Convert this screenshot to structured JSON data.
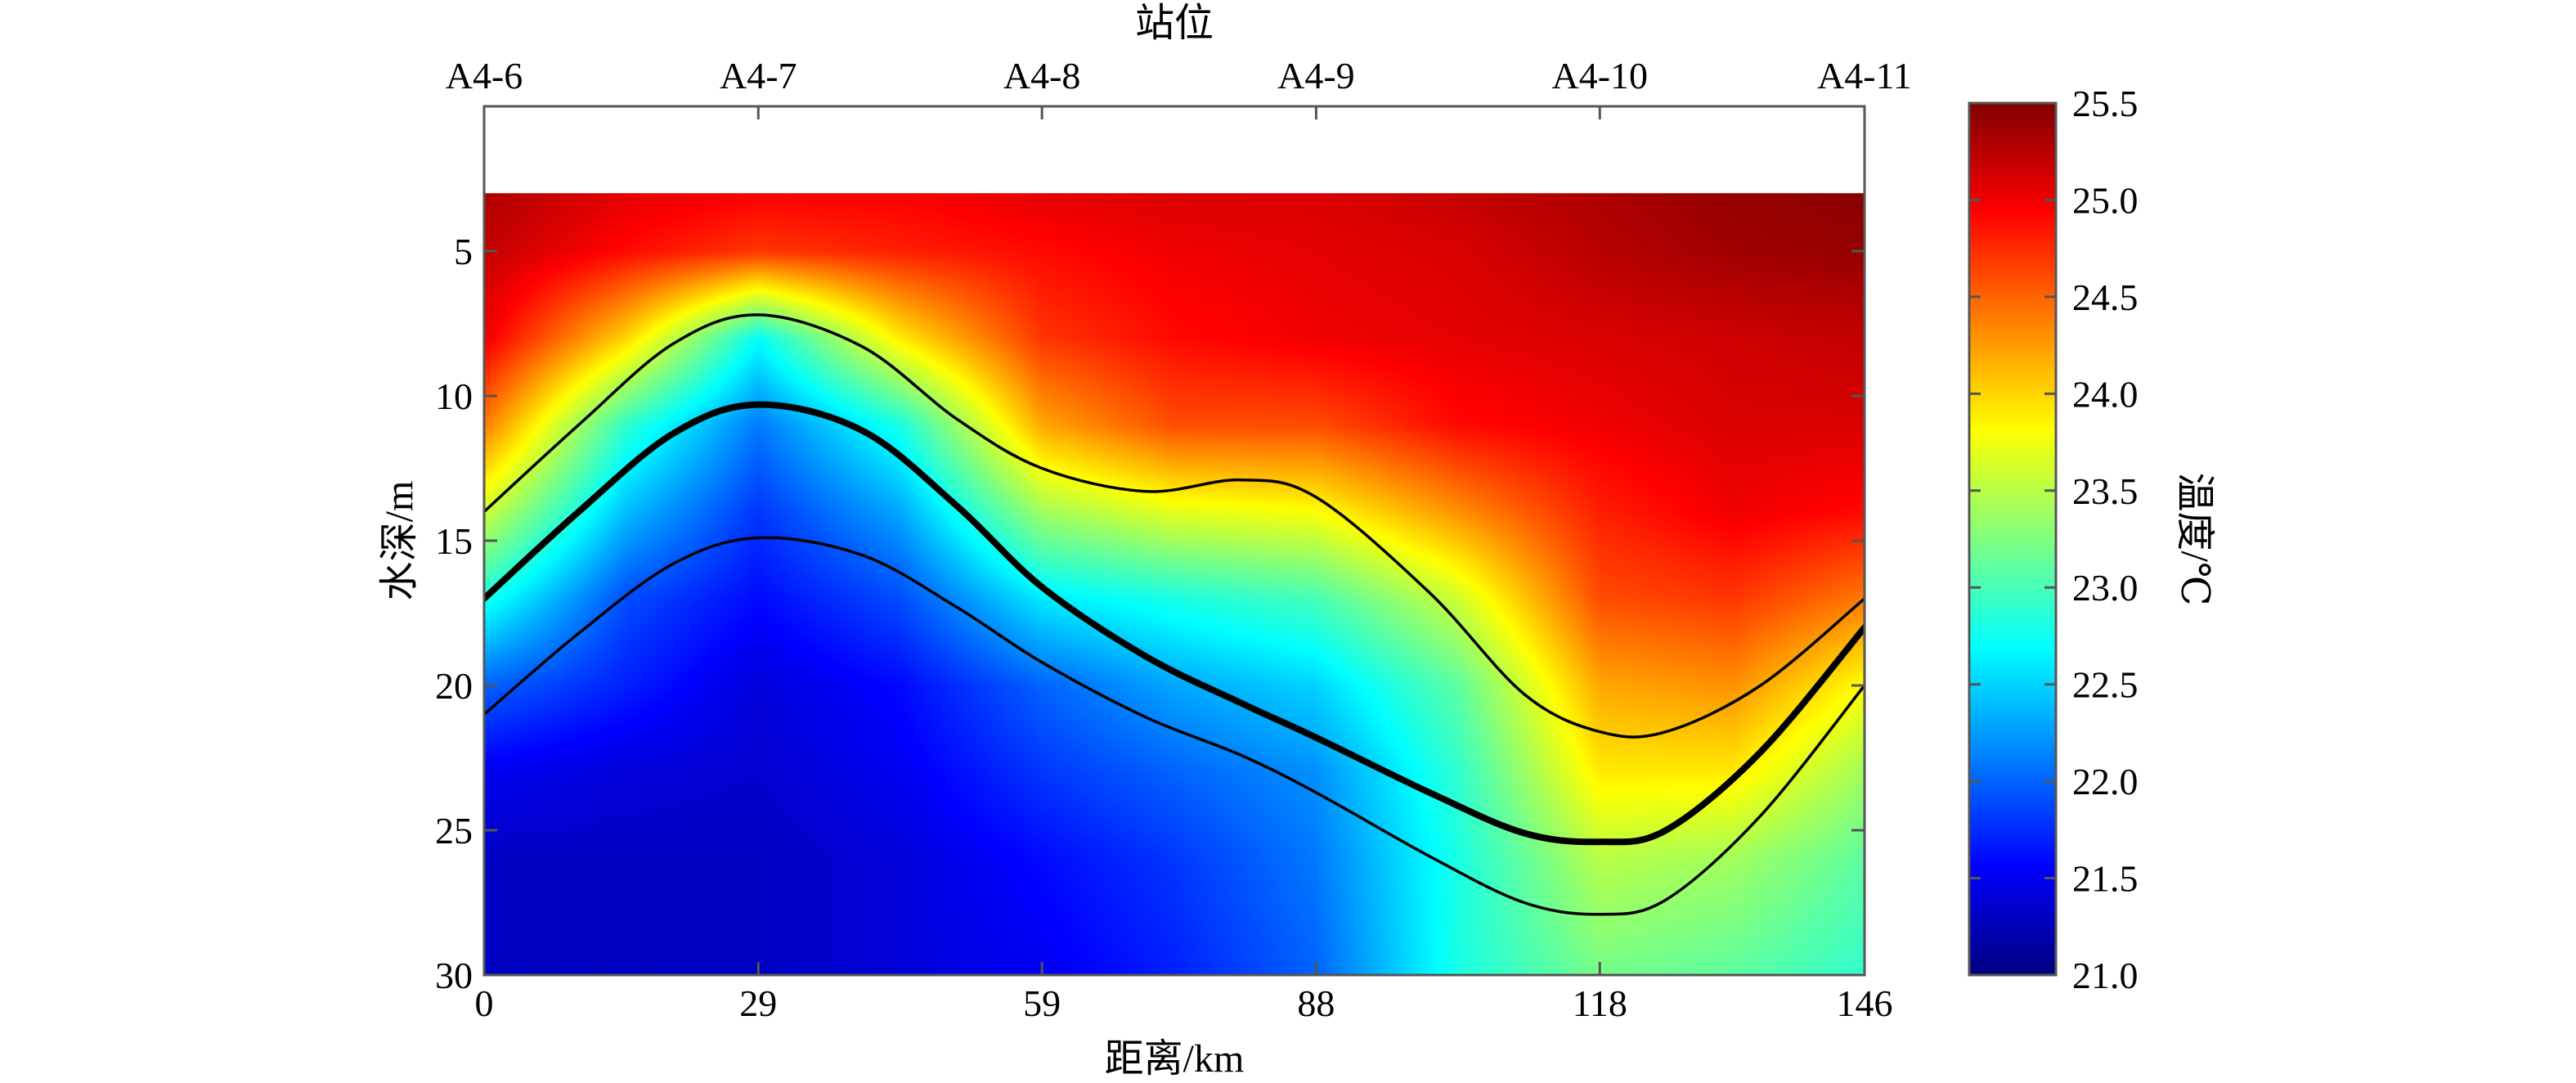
{
  "chart_data": {
    "type": "heatmap",
    "title": "",
    "xlabel": "距离/km",
    "ylabel": "水深/m",
    "top_axis_label": "站位",
    "colorbar_label": "温度/℃",
    "xlim": [
      0,
      146
    ],
    "ylim": [
      30,
      0
    ],
    "data_depth_start": 3,
    "x_ticks": [
      {
        "value": 0,
        "label": "0"
      },
      {
        "value": 29,
        "label": "29"
      },
      {
        "value": 59,
        "label": "59"
      },
      {
        "value": 88,
        "label": "88"
      },
      {
        "value": 118,
        "label": "118"
      },
      {
        "value": 146,
        "label": "146"
      }
    ],
    "y_ticks": [
      {
        "value": 5,
        "label": "5"
      },
      {
        "value": 10,
        "label": "10"
      },
      {
        "value": 15,
        "label": "15"
      },
      {
        "value": 20,
        "label": "20"
      },
      {
        "value": 25,
        "label": "25"
      },
      {
        "value": 30,
        "label": "30"
      }
    ],
    "stations": [
      {
        "name": "A4-6",
        "x": 0
      },
      {
        "name": "A4-7",
        "x": 29
      },
      {
        "name": "A4-8",
        "x": 59
      },
      {
        "name": "A4-9",
        "x": 88
      },
      {
        "name": "A4-10",
        "x": 118
      },
      {
        "name": "A4-11",
        "x": 146
      }
    ],
    "colorbar": {
      "min": 21.0,
      "max": 25.5,
      "ticks": [
        "21.0",
        "21.5",
        "22.0",
        "22.5",
        "23.0",
        "23.5",
        "24.0",
        "24.5",
        "25.0",
        "25.5"
      ],
      "colormap": "jet"
    },
    "series": [
      {
        "style": "thin",
        "x": [
          0,
          10,
          20,
          29,
          40,
          50,
          59,
          70,
          80,
          88,
          100,
          110,
          118,
          125,
          135,
          146
        ],
        "y": [
          14.0,
          11.0,
          8.2,
          7.2,
          8.3,
          10.8,
          12.5,
          13.3,
          12.9,
          13.5,
          16.8,
          20.3,
          21.6,
          21.6,
          20.0,
          17.0
        ]
      },
      {
        "style": "thick",
        "x": [
          0,
          10,
          20,
          29,
          40,
          50,
          59,
          70,
          80,
          88,
          100,
          110,
          118,
          125,
          135,
          146
        ],
        "y": [
          17.0,
          14.0,
          11.3,
          10.3,
          11.2,
          13.8,
          16.6,
          19.0,
          20.6,
          21.8,
          23.7,
          25.1,
          25.4,
          25.0,
          22.3,
          18.0
        ]
      },
      {
        "style": "thin",
        "x": [
          0,
          10,
          20,
          29,
          40,
          50,
          59,
          70,
          80,
          88,
          100,
          110,
          118,
          125,
          135,
          146
        ],
        "y": [
          21.0,
          18.2,
          15.8,
          14.9,
          15.5,
          17.3,
          19.2,
          21.1,
          22.4,
          23.7,
          25.9,
          27.5,
          27.9,
          27.4,
          24.5,
          20.0
        ]
      }
    ],
    "temperature_grid": {
      "x": [
        0,
        15,
        29,
        44,
        59,
        73,
        88,
        103,
        118,
        132,
        146
      ],
      "depth": [
        3,
        5,
        8,
        11,
        14,
        17,
        20,
        23,
        26,
        30
      ],
      "values": [
        [
          25.3,
          25.05,
          24.95,
          24.95,
          25.05,
          25.1,
          25.1,
          25.2,
          25.3,
          25.4,
          25.45
        ],
        [
          25.2,
          24.9,
          24.7,
          24.8,
          24.9,
          25.0,
          25.05,
          25.1,
          25.25,
          25.35,
          25.4
        ],
        [
          25.0,
          24.0,
          22.7,
          23.9,
          24.7,
          24.9,
          25.0,
          25.05,
          25.1,
          25.15,
          25.2
        ],
        [
          24.4,
          22.9,
          22.1,
          22.8,
          24.2,
          24.6,
          24.6,
          24.9,
          25.0,
          25.1,
          25.1
        ],
        [
          23.6,
          22.4,
          21.8,
          22.3,
          23.4,
          23.7,
          23.8,
          24.3,
          24.8,
          25.0,
          24.9
        ],
        [
          22.8,
          21.9,
          21.6,
          21.9,
          22.6,
          22.8,
          23.0,
          23.6,
          24.6,
          24.7,
          24.4
        ],
        [
          22.0,
          21.7,
          21.4,
          21.6,
          22.0,
          22.3,
          22.5,
          23.1,
          24.2,
          24.3,
          23.8
        ],
        [
          21.5,
          21.4,
          21.35,
          21.5,
          21.8,
          22.0,
          22.2,
          22.9,
          23.9,
          23.9,
          23.4
        ],
        [
          21.3,
          21.3,
          21.3,
          21.4,
          21.6,
          21.8,
          22.1,
          22.8,
          23.5,
          23.4,
          23.1
        ],
        [
          21.3,
          21.3,
          21.3,
          21.4,
          21.5,
          21.7,
          22.0,
          22.8,
          23.2,
          23.1,
          22.9
        ]
      ]
    }
  }
}
